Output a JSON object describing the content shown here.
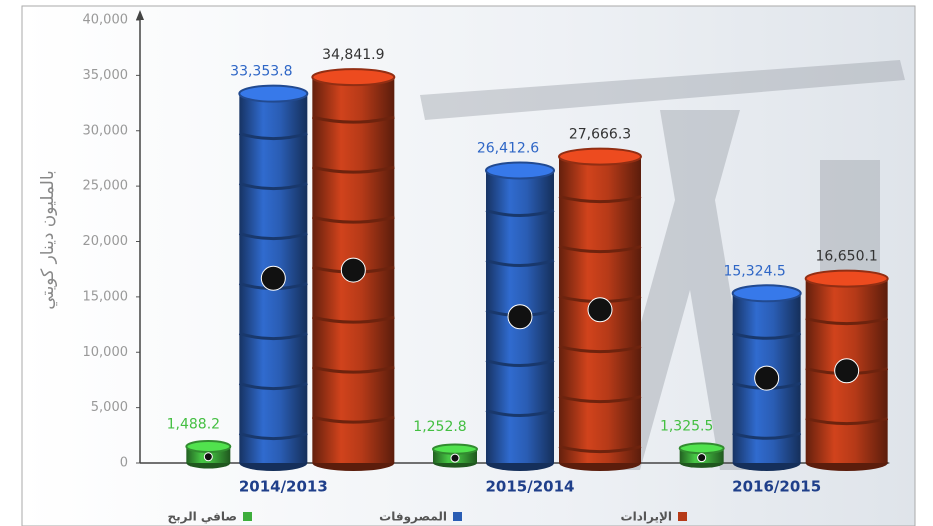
{
  "chart_data": {
    "type": "bar",
    "y_label": "بالمليون دينار كويتي",
    "categories": [
      "2014/2013",
      "2015/2014",
      "2016/2015"
    ],
    "series": [
      {
        "name": "صافي الربح",
        "color": "#3eae3c",
        "values": [
          1488.2,
          1252.8,
          1325.5
        ],
        "value_labels": [
          "1,488.2",
          "1,252.8",
          "1,325.5"
        ]
      },
      {
        "name": "المصروفات",
        "color": "#2a5db4",
        "values": [
          33353.8,
          26412.6,
          15324.5
        ],
        "value_labels": [
          "33,353.8",
          "26,412.6",
          "15,324.5"
        ]
      },
      {
        "name": "الإيرادات",
        "color": "#b63a18",
        "values": [
          34841.9,
          27666.3,
          16650.1
        ],
        "value_labels": [
          "34,841.9",
          "27,666.3",
          "16,650.1"
        ]
      }
    ],
    "ylim": [
      0,
      40000
    ],
    "yticks": [
      0,
      {
        "value": 5000,
        "label": "5,000"
      },
      {
        "value": 10000,
        "label": "10,000"
      },
      {
        "value": 15000,
        "label": "15,000"
      },
      {
        "value": 20000,
        "label": "20,000"
      },
      {
        "value": 25000,
        "label": "25,000"
      },
      {
        "value": 30000,
        "label": "30,000"
      },
      {
        "value": 35000,
        "label": "35,000"
      },
      {
        "value": 40000,
        "label": "40,000"
      }
    ]
  }
}
